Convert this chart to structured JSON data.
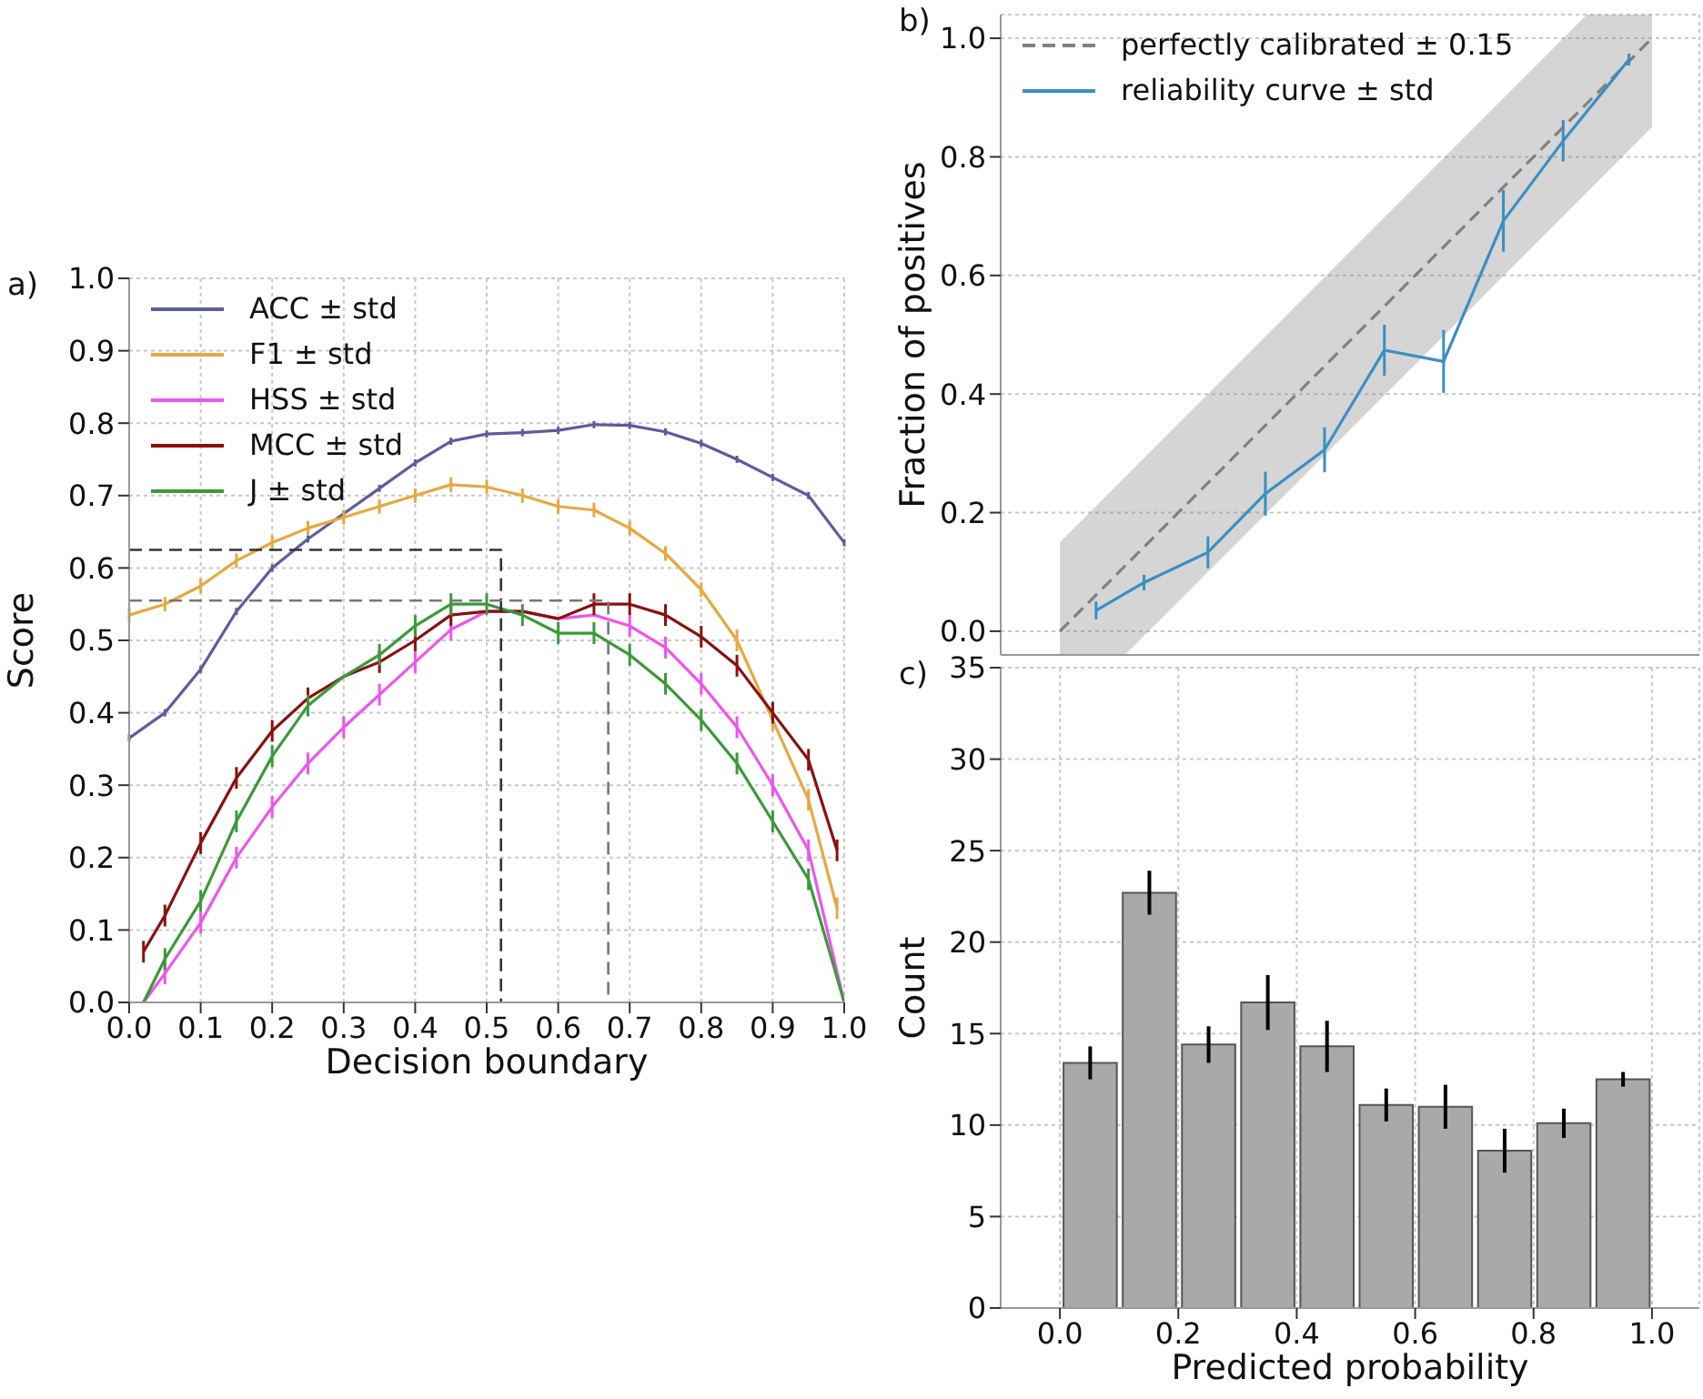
{
  "chart_data": [
    {
      "type": "line",
      "xlabel": "Decision boundary",
      "ylabel": "Score",
      "annotations": [
        "a)"
      ],
      "legend": "top left",
      "grid": true,
      "xlim": [
        0,
        1
      ],
      "ylim": [
        0,
        1
      ],
      "xticks": [
        {
          "value": 0,
          "label": "0.0"
        },
        {
          "value": 0.1,
          "label": "0.1"
        },
        {
          "value": 0.2,
          "label": "0.2"
        },
        {
          "value": 0.3,
          "label": "0.3"
        },
        {
          "value": 0.4,
          "label": "0.4"
        },
        {
          "value": 0.5,
          "label": "0.5"
        },
        {
          "value": 0.6,
          "label": "0.6"
        },
        {
          "value": 0.7,
          "label": "0.7"
        },
        {
          "value": 0.8,
          "label": "0.8"
        },
        {
          "value": 0.9,
          "label": "0.9"
        },
        {
          "value": 1,
          "label": "1.0"
        }
      ],
      "yticks": [
        {
          "value": 0,
          "label": "0.0"
        },
        {
          "value": 0.1,
          "label": "0.1"
        },
        {
          "value": 0.2,
          "label": "0.2"
        },
        {
          "value": 0.3,
          "label": "0.3"
        },
        {
          "value": 0.4,
          "label": "0.4"
        },
        {
          "value": 0.5,
          "label": "0.5"
        },
        {
          "value": 0.6,
          "label": "0.6"
        },
        {
          "value": 0.7,
          "label": "0.7"
        },
        {
          "value": 0.8,
          "label": "0.8"
        },
        {
          "value": 0.9,
          "label": "0.9"
        },
        {
          "value": 1,
          "label": "1.0"
        }
      ],
      "series": [
        {
          "name": "ACC ± std",
          "color": "#5c5ca0",
          "x": [
            0,
            0.05,
            0.1,
            0.15,
            0.2,
            0.25,
            0.3,
            0.35,
            0.4,
            0.45,
            0.5,
            0.55,
            0.6,
            0.65,
            0.7,
            0.75,
            0.8,
            0.85,
            0.9,
            0.95,
            1
          ],
          "values": [
            0.365,
            0.4,
            0.46,
            0.54,
            0.6,
            0.64,
            0.675,
            0.71,
            0.745,
            0.775,
            0.785,
            0.787,
            0.79,
            0.798,
            0.797,
            0.788,
            0.772,
            0.75,
            0.725,
            0.7,
            0.635
          ],
          "errors": [
            0.005,
            0.005,
            0.005,
            0.005,
            0.005,
            0.005,
            0.005,
            0.005,
            0.005,
            0.005,
            0.005,
            0.005,
            0.005,
            0.005,
            0.005,
            0.005,
            0.005,
            0.005,
            0.005,
            0.005,
            0.005
          ]
        },
        {
          "name": "F1 ± std",
          "color": "#e8a840",
          "x": [
            0,
            0.05,
            0.1,
            0.15,
            0.2,
            0.25,
            0.3,
            0.35,
            0.4,
            0.45,
            0.5,
            0.55,
            0.6,
            0.65,
            0.7,
            0.75,
            0.8,
            0.85,
            0.9,
            0.95,
            0.99
          ],
          "values": [
            0.535,
            0.55,
            0.575,
            0.61,
            0.635,
            0.655,
            0.67,
            0.685,
            0.7,
            0.715,
            0.712,
            0.7,
            0.685,
            0.68,
            0.655,
            0.62,
            0.57,
            0.5,
            0.39,
            0.28,
            0.13
          ],
          "errors": [
            0.01,
            0.01,
            0.01,
            0.01,
            0.01,
            0.01,
            0.01,
            0.01,
            0.01,
            0.01,
            0.01,
            0.01,
            0.01,
            0.01,
            0.01,
            0.01,
            0.01,
            0.015,
            0.015,
            0.015,
            0.015
          ]
        },
        {
          "name": "HSS ± std",
          "color": "#ee55ee",
          "x": [
            0.02,
            0.05,
            0.1,
            0.15,
            0.2,
            0.25,
            0.3,
            0.35,
            0.4,
            0.45,
            0.5,
            0.55,
            0.6,
            0.65,
            0.7,
            0.75,
            0.8,
            0.85,
            0.9,
            0.95,
            1
          ],
          "values": [
            0,
            0.04,
            0.11,
            0.2,
            0.27,
            0.33,
            0.38,
            0.425,
            0.47,
            0.515,
            0.54,
            0.54,
            0.53,
            0.535,
            0.52,
            0.49,
            0.44,
            0.38,
            0.3,
            0.21,
            0
          ],
          "errors": [
            null,
            0.015,
            0.015,
            0.015,
            0.015,
            0.015,
            0.015,
            0.015,
            0.015,
            0.015,
            null,
            null,
            null,
            null,
            0.015,
            0.015,
            0.015,
            0.015,
            0.015,
            0.015,
            null
          ]
        },
        {
          "name": "MCC ± std",
          "color": "#8b1010",
          "x": [
            0.02,
            0.05,
            0.1,
            0.15,
            0.2,
            0.25,
            0.3,
            0.35,
            0.4,
            0.45,
            0.5,
            0.55,
            0.6,
            0.65,
            0.7,
            0.75,
            0.8,
            0.85,
            0.9,
            0.95,
            0.99
          ],
          "values": [
            0.07,
            0.12,
            0.22,
            0.31,
            0.375,
            0.42,
            0.45,
            0.47,
            0.5,
            0.535,
            0.54,
            0.54,
            0.53,
            0.55,
            0.55,
            0.535,
            0.505,
            0.465,
            0.4,
            0.335,
            0.21
          ],
          "errors": [
            0.015,
            0.015,
            0.015,
            0.015,
            0.015,
            0.015,
            null,
            0.015,
            0.015,
            0.015,
            null,
            null,
            null,
            0.015,
            0.015,
            0.015,
            0.015,
            0.015,
            0.015,
            0.015,
            0.015
          ]
        },
        {
          "name": "J ± std",
          "color": "#3a9a3a",
          "x": [
            0.02,
            0.05,
            0.1,
            0.15,
            0.2,
            0.25,
            0.3,
            0.35,
            0.4,
            0.45,
            0.5,
            0.55,
            0.6,
            0.65,
            0.7,
            0.75,
            0.8,
            0.85,
            0.9,
            0.95,
            1
          ],
          "values": [
            0,
            0.06,
            0.14,
            0.25,
            0.34,
            0.41,
            0.45,
            0.48,
            0.52,
            0.55,
            0.55,
            0.535,
            0.51,
            0.51,
            0.48,
            0.44,
            0.39,
            0.33,
            0.25,
            0.17,
            0
          ],
          "errors": [
            null,
            0.015,
            0.015,
            0.015,
            0.015,
            0.015,
            null,
            0.015,
            0.015,
            0.015,
            0.015,
            0.015,
            0.015,
            0.015,
            0.015,
            0.015,
            0.015,
            0.015,
            0.015,
            0.015,
            null
          ]
        },
        {
          "color": "#333333",
          "line_style": "dashed",
          "x": [
            0,
            0.52,
            0.52
          ],
          "values": [
            0.625,
            0.625,
            0
          ]
        },
        {
          "color": "#777777",
          "line_style": "dashed",
          "x": [
            0,
            0.67,
            0.67
          ],
          "values": [
            0.555,
            0.555,
            0
          ]
        }
      ]
    },
    {
      "type": "line",
      "ylabel": "Fraction of positives",
      "annotations": [
        "b)"
      ],
      "legend": "top left",
      "grid": true,
      "tick_labels": "y",
      "xlim": [
        -0.1,
        1.08
      ],
      "ylim": [
        -0.04,
        1.04
      ],
      "xticks": [
        {
          "value": 0,
          "label": null
        },
        {
          "value": 0.2,
          "label": null
        },
        {
          "value": 0.4,
          "label": null
        },
        {
          "value": 0.6,
          "label": null
        },
        {
          "value": 0.8,
          "label": null
        },
        {
          "value": 1,
          "label": null
        }
      ],
      "yticks": [
        {
          "value": 0,
          "label": "0.0"
        },
        {
          "value": 0.2,
          "label": "0.2"
        },
        {
          "value": 0.4,
          "label": "0.4"
        },
        {
          "value": 0.6,
          "label": "0.6"
        },
        {
          "value": 0.8,
          "label": "0.8"
        },
        {
          "value": 1,
          "label": "1.0"
        }
      ],
      "series": [
        {
          "name": "perfectly calibrated ± 0.15",
          "color": "#808080",
          "line_style": "dashed",
          "x": [
            0,
            0.11,
            0.89,
            1
          ],
          "values": [
            0,
            0.11,
            0.89,
            1
          ],
          "lower": [
            -0.04,
            -0.04,
            0.74,
            0.85
          ],
          "upper": [
            0.15,
            0.26,
            1.04,
            1.04
          ]
        },
        {
          "name": "reliability curve ± std",
          "color": "#3a8fc4",
          "x": [
            0.061,
            0.142,
            0.25,
            0.347,
            0.447,
            0.548,
            0.648,
            0.749,
            0.85,
            0.961
          ],
          "values": [
            0.035,
            0.082,
            0.133,
            0.232,
            0.306,
            0.474,
            0.455,
            0.692,
            0.827,
            0.964
          ],
          "errors": [
            0.015,
            0.013,
            0.027,
            0.037,
            0.038,
            0.043,
            0.053,
            0.052,
            0.035,
            0.01
          ]
        }
      ]
    },
    {
      "type": "histogram",
      "xlabel": "Predicted probability",
      "ylabel": "Count",
      "annotations": [
        "c)"
      ],
      "grid": true,
      "color": "#a9a9a9",
      "xlim": [
        -0.1,
        1.08
      ],
      "ylim": [
        0,
        35
      ],
      "xticks": [
        {
          "value": 0,
          "label": "0.0"
        },
        {
          "value": 0.2,
          "label": "0.2"
        },
        {
          "value": 0.4,
          "label": "0.4"
        },
        {
          "value": 0.6,
          "label": "0.6"
        },
        {
          "value": 0.8,
          "label": "0.8"
        },
        {
          "value": 1,
          "label": "1.0"
        }
      ],
      "yticks": [
        0,
        5,
        10,
        15,
        20,
        25,
        30,
        35
      ],
      "bins": [
        0,
        0.1,
        0.2,
        0.3,
        0.4,
        0.5,
        0.6,
        0.7,
        0.8,
        0.9,
        1
      ],
      "values": [
        13.4,
        22.7,
        14.4,
        16.7,
        14.3,
        11.1,
        11.0,
        8.6,
        10.1,
        12.5
      ],
      "errors": [
        0.9,
        1.2,
        1.0,
        1.5,
        1.4,
        0.9,
        1.2,
        1.2,
        0.8,
        0.4
      ]
    }
  ]
}
